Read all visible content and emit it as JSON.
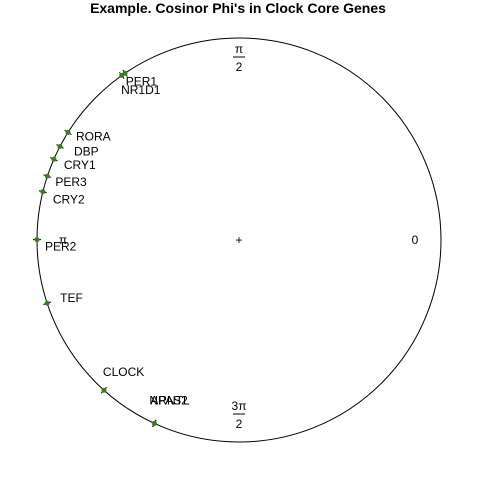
{
  "chart_data": {
    "type": "scatter",
    "title": "Example. Cosinor Phi's in Clock Core Genes",
    "xlabel": "",
    "ylabel": "",
    "axis_labels": [
      {
        "name": "zero",
        "angle": 0,
        "numerator": "0",
        "denominator": ""
      },
      {
        "name": "half-pi",
        "angle": 1.5708,
        "numerator": "π",
        "denominator": "2"
      },
      {
        "name": "pi",
        "angle": 3.1416,
        "numerator": "π",
        "denominator": ""
      },
      {
        "name": "three-half-pi",
        "angle": 4.7124,
        "numerator": "3π",
        "denominator": "2"
      }
    ],
    "center_marker": "+",
    "point_color": "#3a7d1e",
    "points": [
      {
        "label": "PER1",
        "phi": 2.19
      },
      {
        "label": "NR1D1",
        "phi": 2.17
      },
      {
        "label": "RORA",
        "phi": 2.58
      },
      {
        "label": "DBP",
        "phi": 2.66
      },
      {
        "label": "CRY1",
        "phi": 2.73
      },
      {
        "label": "PER3",
        "phi": 2.82
      },
      {
        "label": "CRY2",
        "phi": 2.9
      },
      {
        "label": "PER2",
        "phi": 3.14
      },
      {
        "label": "TEF",
        "phi": 3.46
      },
      {
        "label": "CLOCK",
        "phi": 3.98
      },
      {
        "label": "ARNTL",
        "phi": 4.28
      },
      {
        "label": "NPAS2",
        "phi": 4.28
      }
    ]
  }
}
